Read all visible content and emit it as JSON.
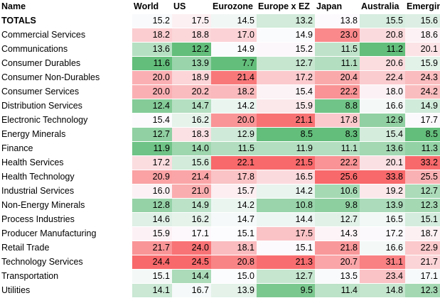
{
  "table": {
    "headers": [
      "Name",
      "World",
      "US",
      "Eurozone",
      "Europe x EZ",
      "Japan",
      "Australia",
      "Emerging"
    ],
    "rows": [
      {
        "name": "TOTALS",
        "values": [
          15.2,
          17.5,
          14.5,
          13.2,
          13.8,
          15.5,
          15.6
        ]
      },
      {
        "name": "Commercial Services",
        "values": [
          18.2,
          18.8,
          17.0,
          14.9,
          23.0,
          20.8,
          18.6
        ]
      },
      {
        "name": "Communications",
        "values": [
          13.6,
          12.2,
          14.9,
          15.2,
          11.5,
          11.2,
          20.1
        ]
      },
      {
        "name": "Consumer Durables",
        "values": [
          11.6,
          13.9,
          7.7,
          12.7,
          11.1,
          20.6,
          15.9
        ]
      },
      {
        "name": "Consumer Non-Durables",
        "values": [
          20.0,
          18.9,
          21.4,
          17.2,
          20.4,
          22.4,
          24.3
        ]
      },
      {
        "name": "Consumer Services",
        "values": [
          20.0,
          20.2,
          18.2,
          15.4,
          22.2,
          18.0,
          24.2
        ]
      },
      {
        "name": "Distribution Services",
        "values": [
          12.4,
          14.7,
          14.2,
          15.9,
          8.8,
          16.6,
          14.9
        ]
      },
      {
        "name": "Electronic Technology",
        "values": [
          15.4,
          16.2,
          20.0,
          21.1,
          17.8,
          12.9,
          17.7
        ]
      },
      {
        "name": "Energy Minerals",
        "values": [
          12.7,
          18.3,
          12.9,
          8.5,
          8.3,
          15.4,
          8.5
        ]
      },
      {
        "name": "Finance",
        "values": [
          11.9,
          14.0,
          11.5,
          11.9,
          11.1,
          13.6,
          11.3
        ]
      },
      {
        "name": "Health Services",
        "values": [
          17.2,
          15.6,
          22.1,
          21.5,
          22.2,
          20.1,
          33.2
        ]
      },
      {
        "name": "Health Technology",
        "values": [
          20.9,
          21.4,
          17.8,
          16.5,
          25.6,
          33.8,
          25.5
        ]
      },
      {
        "name": "Industrial Services",
        "values": [
          16.0,
          21.0,
          15.7,
          14.2,
          10.6,
          19.2,
          12.7
        ]
      },
      {
        "name": "Non-Energy Minerals",
        "values": [
          12.8,
          14.9,
          14.2,
          10.8,
          9.8,
          13.9,
          12.3
        ]
      },
      {
        "name": "Process Industries",
        "values": [
          14.6,
          16.2,
          14.7,
          14.4,
          12.7,
          16.5,
          15.1
        ]
      },
      {
        "name": "Producer Manufacturing",
        "values": [
          15.9,
          17.1,
          15.1,
          17.5,
          14.3,
          17.2,
          18.7
        ]
      },
      {
        "name": "Retail Trade",
        "values": [
          21.7,
          24.0,
          18.1,
          15.1,
          21.8,
          16.6,
          22.9
        ]
      },
      {
        "name": "Technology Services",
        "values": [
          24.4,
          24.5,
          20.8,
          21.3,
          20.7,
          31.1,
          21.7
        ]
      },
      {
        "name": "Transportation",
        "values": [
          15.1,
          14.4,
          15.0,
          12.7,
          13.5,
          23.4,
          17.1
        ]
      },
      {
        "name": "Utilities",
        "values": [
          14.1,
          16.7,
          13.9,
          9.5,
          11.4,
          14.8,
          12.3
        ]
      }
    ]
  },
  "colors": {
    "low": "#63be7b",
    "mid": "#fcfcff",
    "high": "#f8696b",
    "header_bg": "#ffffff",
    "text": "#000000"
  }
}
